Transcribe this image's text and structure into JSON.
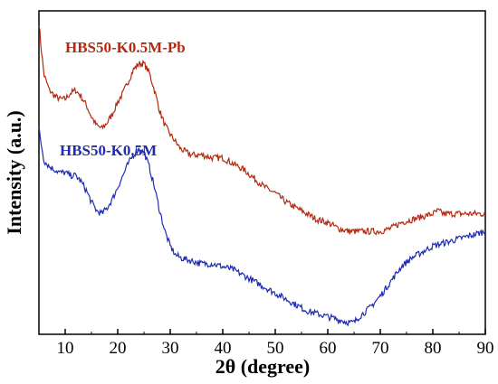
{
  "chart_data": {
    "type": "line",
    "xlabel": "2θ (degree)",
    "ylabel": "Intensity (a.u.)",
    "xlim": [
      5,
      90
    ],
    "x_ticks": [
      "10",
      "20",
      "30",
      "40",
      "50",
      "60",
      "70",
      "80",
      "90"
    ],
    "y_ticks": "none",
    "grid": false,
    "legend": "labels placed beside curves",
    "series": [
      {
        "name": "HBS50-K0.5M-Pb",
        "color": "#b22a10",
        "x": [
          5,
          5.5,
          6,
          7,
          8,
          9,
          10,
          11,
          12,
          13,
          14,
          15,
          16,
          17,
          18,
          19,
          20,
          21,
          22,
          23,
          24,
          25,
          26,
          27,
          28,
          29,
          30,
          32,
          34,
          36,
          38,
          40,
          42,
          44,
          46,
          48,
          50,
          52,
          54,
          56,
          58,
          60,
          62,
          64,
          66,
          68,
          70,
          72,
          74,
          76,
          78,
          80,
          81,
          82,
          84,
          86,
          88,
          90
        ],
        "y": [
          96,
          86,
          78,
          73,
          71,
          70,
          70,
          72,
          73,
          71,
          68,
          64,
          61,
          60,
          62,
          65,
          69,
          72,
          76,
          80,
          82,
          82,
          79,
          73,
          66,
          61,
          58,
          53,
          51,
          51,
          50,
          50,
          48,
          46,
          43,
          40,
          38,
          35,
          33,
          31,
          29,
          28,
          26,
          25,
          25,
          25,
          25,
          26,
          28,
          29,
          30,
          31,
          32,
          31,
          31,
          31,
          31,
          31
        ]
      },
      {
        "name": "HBS50-K0.5M",
        "color": "#1f2bb0",
        "x": [
          5,
          5.5,
          6,
          7,
          8,
          9,
          10,
          11,
          12,
          13,
          14,
          15,
          16,
          17,
          18,
          19,
          20,
          21,
          22,
          23,
          24,
          25,
          26,
          27,
          28,
          29,
          30,
          31,
          32,
          34,
          36,
          38,
          40,
          42,
          44,
          46,
          48,
          50,
          52,
          54,
          56,
          58,
          60,
          62,
          64,
          65,
          66,
          68,
          70,
          72,
          74,
          76,
          78,
          80,
          82,
          84,
          86,
          88,
          90
        ],
        "y": [
          60,
          54,
          49,
          47,
          46,
          45,
          45,
          44,
          44,
          42,
          39,
          35,
          32,
          31,
          33,
          36,
          40,
          44,
          48,
          51,
          53,
          52,
          47,
          40,
          32,
          25,
          20,
          17,
          16,
          15,
          14,
          14,
          13,
          12,
          10,
          8,
          6,
          4,
          2,
          0,
          -2,
          -3,
          -4,
          -5,
          -6,
          -6,
          -4,
          -1,
          3,
          8,
          13,
          16,
          18,
          20,
          21,
          22,
          23,
          24,
          25
        ]
      }
    ]
  }
}
